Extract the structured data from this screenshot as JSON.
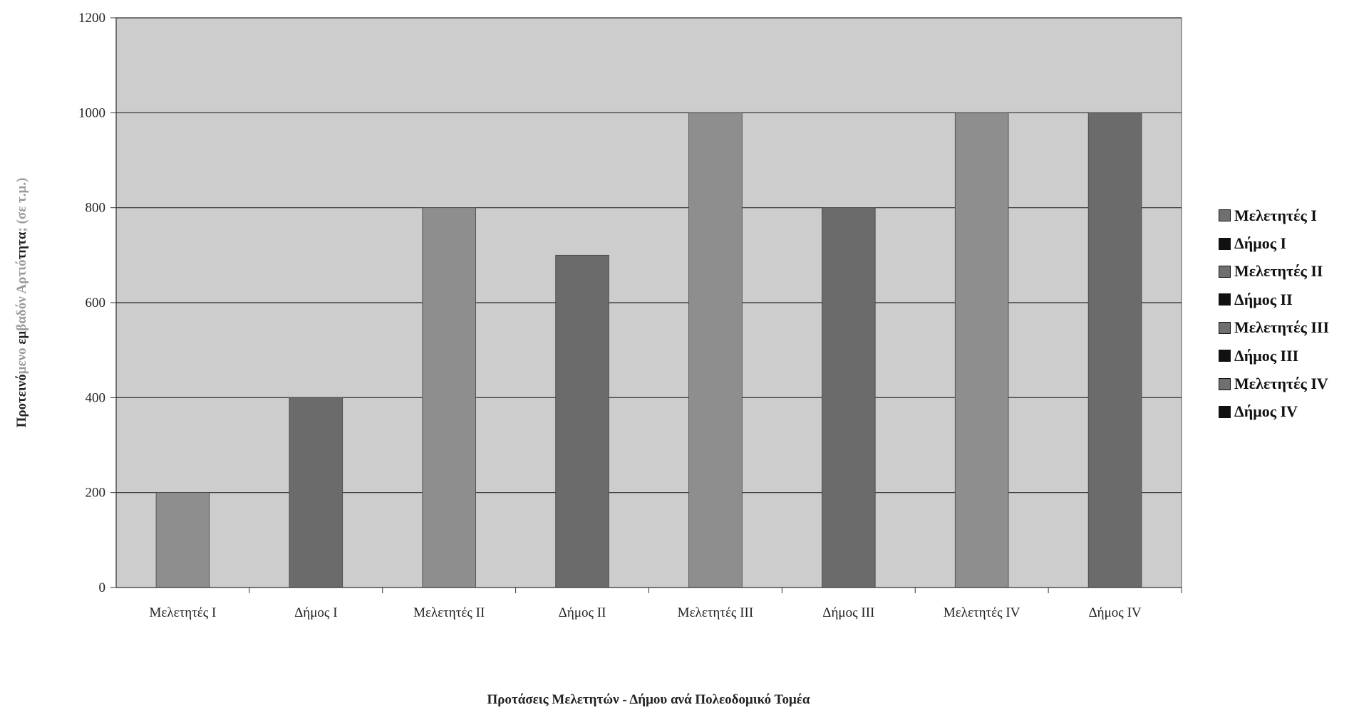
{
  "chart_data": {
    "type": "bar",
    "categories": [
      "Μελετητές Ι",
      "Δήμος Ι",
      "Μελετητές ΙΙ",
      "Δήμος ΙΙ",
      "Μελετητές ΙΙΙ",
      "Δήμος ΙΙΙ",
      "Μελετητές ΙV",
      "Δήμος ΙV"
    ],
    "values": [
      200,
      400,
      800,
      700,
      1000,
      800,
      1000,
      1000
    ],
    "xlabel": "Προτάσεις Μελετητών - Δήμου ανά Πολεοδομικό Τομέα",
    "ylabel_main": "Προτεινό",
    "ylabel_faint1": "μενο",
    "ylabel_mid": " εμ",
    "ylabel_faint2": "βαδόν",
    "ylabel_faint3": " Αρτιό",
    "ylabel_end": "τητα",
    "ylabel_unit": "; (σε τ.μ.)",
    "ylim": [
      0,
      1200
    ],
    "yticks": [
      "0",
      "200",
      "400",
      "600",
      "800",
      "1000",
      "1200"
    ],
    "grid": true,
    "legend_position": "right",
    "legend": [
      "Μελετητές Ι",
      "Δήμος Ι",
      "Μελετητές ΙΙ",
      "Δήμος ΙΙ",
      "Μελετητές ΙΙΙ",
      "Δήμος ΙΙΙ",
      "Μελετητές ΙV",
      "Δήμος ΙV"
    ],
    "colors": {
      "plot_background": "#cdcdcd",
      "light_bar": "#8e8e8e",
      "dark_bar": "#6b6b6b",
      "grid": "#2a2a2a",
      "legend_light": "#6f6f6f",
      "legend_dark": "#111111"
    }
  }
}
